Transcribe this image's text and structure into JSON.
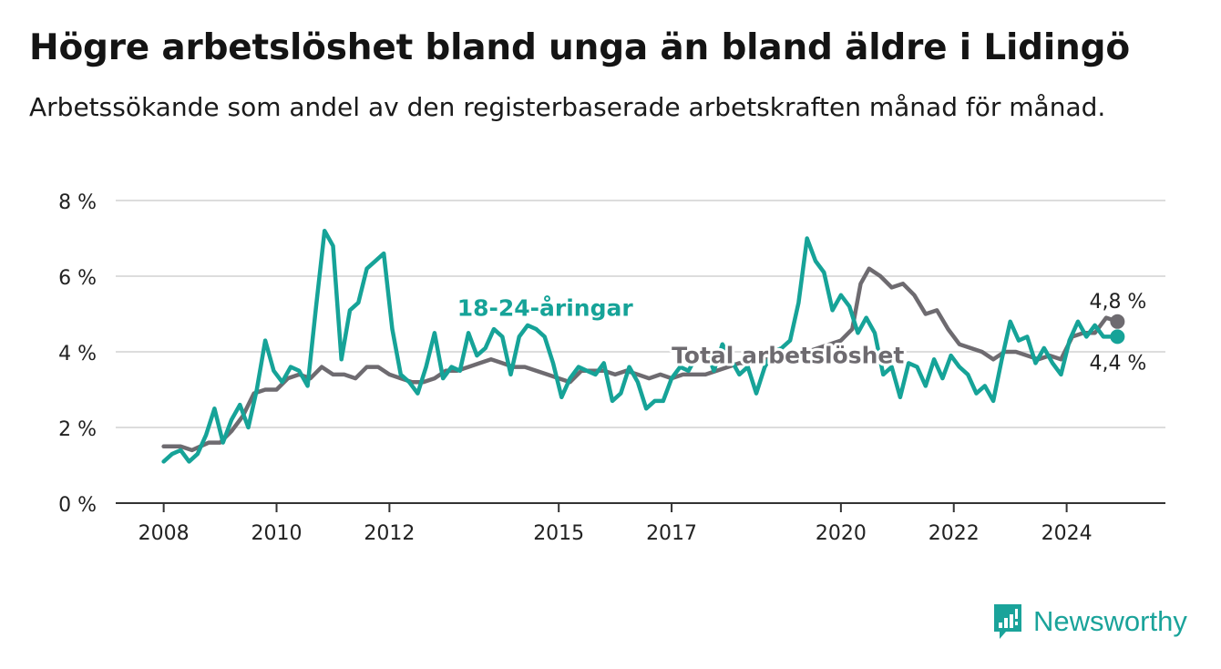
{
  "header": {
    "title": "Högre arbetslöshet bland unga än bland äldre i Lidingö",
    "subtitle": "Arbetssökande som andel av den registerbaserade arbetskraften månad för månad."
  },
  "brand": {
    "label": "Newsworthy",
    "icon": "newsworthy-logo-icon",
    "color": "#1aa39a"
  },
  "chart_data": {
    "type": "line",
    "title": "Högre arbetslöshet bland unga än bland äldre i Lidingö",
    "subtitle": "Arbetssökande som andel av den registerbaserade arbetskraften månad för månad.",
    "xlabel": "",
    "ylabel": "",
    "ylim": [
      0,
      8
    ],
    "xlim": [
      2007.15,
      2025.75
    ],
    "y_ticks": [
      0,
      2,
      4,
      6,
      8
    ],
    "y_tick_labels": [
      "0 %",
      "2 %",
      "4 %",
      "6 %",
      "8 %"
    ],
    "x_ticks": [
      2008,
      2010,
      2012,
      2015,
      2017,
      2020,
      2022,
      2024
    ],
    "x_tick_labels": [
      "2008",
      "2010",
      "2012",
      "2015",
      "2017",
      "2020",
      "2022",
      "2024"
    ],
    "grid": "horizontal",
    "series": [
      {
        "name": "Total arbetslöshet",
        "color": "#6e6b70",
        "end_label": "4,8 %",
        "points": [
          [
            2008.0,
            1.5
          ],
          [
            2008.3,
            1.5
          ],
          [
            2008.5,
            1.4
          ],
          [
            2008.8,
            1.6
          ],
          [
            2009.0,
            1.6
          ],
          [
            2009.2,
            1.9
          ],
          [
            2009.4,
            2.3
          ],
          [
            2009.6,
            2.9
          ],
          [
            2009.8,
            3.0
          ],
          [
            2010.0,
            3.0
          ],
          [
            2010.2,
            3.3
          ],
          [
            2010.4,
            3.4
          ],
          [
            2010.6,
            3.3
          ],
          [
            2010.8,
            3.6
          ],
          [
            2011.0,
            3.4
          ],
          [
            2011.2,
            3.4
          ],
          [
            2011.4,
            3.3
          ],
          [
            2011.6,
            3.6
          ],
          [
            2011.8,
            3.6
          ],
          [
            2012.0,
            3.4
          ],
          [
            2012.2,
            3.3
          ],
          [
            2012.4,
            3.2
          ],
          [
            2012.6,
            3.2
          ],
          [
            2012.8,
            3.3
          ],
          [
            2013.0,
            3.5
          ],
          [
            2013.2,
            3.5
          ],
          [
            2013.4,
            3.6
          ],
          [
            2013.6,
            3.7
          ],
          [
            2013.8,
            3.8
          ],
          [
            2014.0,
            3.7
          ],
          [
            2014.2,
            3.6
          ],
          [
            2014.4,
            3.6
          ],
          [
            2014.6,
            3.5
          ],
          [
            2014.8,
            3.4
          ],
          [
            2015.0,
            3.3
          ],
          [
            2015.2,
            3.2
          ],
          [
            2015.4,
            3.5
          ],
          [
            2015.6,
            3.5
          ],
          [
            2015.8,
            3.5
          ],
          [
            2016.0,
            3.4
          ],
          [
            2016.2,
            3.5
          ],
          [
            2016.4,
            3.4
          ],
          [
            2016.6,
            3.3
          ],
          [
            2016.8,
            3.4
          ],
          [
            2017.0,
            3.3
          ],
          [
            2017.2,
            3.4
          ],
          [
            2017.4,
            3.4
          ],
          [
            2017.6,
            3.4
          ],
          [
            2017.8,
            3.5
          ],
          [
            2018.0,
            3.6
          ],
          [
            2018.2,
            3.7
          ],
          [
            2018.4,
            3.7
          ],
          [
            2018.6,
            3.8
          ],
          [
            2018.8,
            3.8
          ],
          [
            2019.0,
            3.9
          ],
          [
            2019.2,
            4.0
          ],
          [
            2019.4,
            4.0
          ],
          [
            2019.6,
            4.1
          ],
          [
            2019.8,
            4.2
          ],
          [
            2020.0,
            4.3
          ],
          [
            2020.2,
            4.6
          ],
          [
            2020.35,
            5.8
          ],
          [
            2020.5,
            6.2
          ],
          [
            2020.7,
            6.0
          ],
          [
            2020.9,
            5.7
          ],
          [
            2021.1,
            5.8
          ],
          [
            2021.3,
            5.5
          ],
          [
            2021.5,
            5.0
          ],
          [
            2021.7,
            5.1
          ],
          [
            2021.9,
            4.6
          ],
          [
            2022.1,
            4.2
          ],
          [
            2022.3,
            4.1
          ],
          [
            2022.5,
            4.0
          ],
          [
            2022.7,
            3.8
          ],
          [
            2022.9,
            4.0
          ],
          [
            2023.1,
            4.0
          ],
          [
            2023.3,
            3.9
          ],
          [
            2023.5,
            3.8
          ],
          [
            2023.7,
            3.9
          ],
          [
            2023.9,
            3.8
          ],
          [
            2024.1,
            4.4
          ],
          [
            2024.3,
            4.5
          ],
          [
            2024.5,
            4.5
          ],
          [
            2024.7,
            4.9
          ],
          [
            2024.9,
            4.8
          ]
        ]
      },
      {
        "name": "18-24-åringar",
        "color": "#16a398",
        "end_label": "4,4 %",
        "points": [
          [
            2008.0,
            1.1
          ],
          [
            2008.15,
            1.3
          ],
          [
            2008.3,
            1.4
          ],
          [
            2008.45,
            1.1
          ],
          [
            2008.6,
            1.3
          ],
          [
            2008.75,
            1.8
          ],
          [
            2008.9,
            2.5
          ],
          [
            2009.05,
            1.6
          ],
          [
            2009.2,
            2.2
          ],
          [
            2009.35,
            2.6
          ],
          [
            2009.5,
            2.0
          ],
          [
            2009.65,
            3.0
          ],
          [
            2009.8,
            4.3
          ],
          [
            2009.95,
            3.5
          ],
          [
            2010.1,
            3.2
          ],
          [
            2010.25,
            3.6
          ],
          [
            2010.4,
            3.5
          ],
          [
            2010.55,
            3.1
          ],
          [
            2010.7,
            5.2
          ],
          [
            2010.85,
            7.2
          ],
          [
            2011.0,
            6.8
          ],
          [
            2011.15,
            3.8
          ],
          [
            2011.3,
            5.1
          ],
          [
            2011.45,
            5.3
          ],
          [
            2011.6,
            6.2
          ],
          [
            2011.75,
            6.4
          ],
          [
            2011.9,
            6.6
          ],
          [
            2012.05,
            4.6
          ],
          [
            2012.2,
            3.4
          ],
          [
            2012.35,
            3.2
          ],
          [
            2012.5,
            2.9
          ],
          [
            2012.65,
            3.6
          ],
          [
            2012.8,
            4.5
          ],
          [
            2012.95,
            3.3
          ],
          [
            2013.1,
            3.6
          ],
          [
            2013.25,
            3.5
          ],
          [
            2013.4,
            4.5
          ],
          [
            2013.55,
            3.9
          ],
          [
            2013.7,
            4.1
          ],
          [
            2013.85,
            4.6
          ],
          [
            2014.0,
            4.4
          ],
          [
            2014.15,
            3.4
          ],
          [
            2014.3,
            4.4
          ],
          [
            2014.45,
            4.7
          ],
          [
            2014.6,
            4.6
          ],
          [
            2014.75,
            4.4
          ],
          [
            2014.9,
            3.7
          ],
          [
            2015.05,
            2.8
          ],
          [
            2015.2,
            3.3
          ],
          [
            2015.35,
            3.6
          ],
          [
            2015.5,
            3.5
          ],
          [
            2015.65,
            3.4
          ],
          [
            2015.8,
            3.7
          ],
          [
            2015.95,
            2.7
          ],
          [
            2016.1,
            2.9
          ],
          [
            2016.25,
            3.6
          ],
          [
            2016.4,
            3.2
          ],
          [
            2016.55,
            2.5
          ],
          [
            2016.7,
            2.7
          ],
          [
            2016.85,
            2.7
          ],
          [
            2017.0,
            3.3
          ],
          [
            2017.15,
            3.6
          ],
          [
            2017.3,
            3.5
          ],
          [
            2017.45,
            3.9
          ],
          [
            2017.6,
            4.1
          ],
          [
            2017.75,
            3.5
          ],
          [
            2017.9,
            4.2
          ],
          [
            2018.05,
            3.8
          ],
          [
            2018.2,
            3.4
          ],
          [
            2018.35,
            3.6
          ],
          [
            2018.5,
            2.9
          ],
          [
            2018.65,
            3.6
          ],
          [
            2018.8,
            4.0
          ],
          [
            2018.95,
            4.1
          ],
          [
            2019.1,
            4.3
          ],
          [
            2019.25,
            5.3
          ],
          [
            2019.4,
            7.0
          ],
          [
            2019.55,
            6.4
          ],
          [
            2019.7,
            6.1
          ],
          [
            2019.85,
            5.1
          ],
          [
            2020.0,
            5.5
          ],
          [
            2020.15,
            5.2
          ],
          [
            2020.3,
            4.5
          ],
          [
            2020.45,
            4.9
          ],
          [
            2020.6,
            4.5
          ],
          [
            2020.75,
            3.4
          ],
          [
            2020.9,
            3.6
          ],
          [
            2021.05,
            2.8
          ],
          [
            2021.2,
            3.7
          ],
          [
            2021.35,
            3.6
          ],
          [
            2021.5,
            3.1
          ],
          [
            2021.65,
            3.8
          ],
          [
            2021.8,
            3.3
          ],
          [
            2021.95,
            3.9
          ],
          [
            2022.1,
            3.6
          ],
          [
            2022.25,
            3.4
          ],
          [
            2022.4,
            2.9
          ],
          [
            2022.55,
            3.1
          ],
          [
            2022.7,
            2.7
          ],
          [
            2022.85,
            3.8
          ],
          [
            2023.0,
            4.8
          ],
          [
            2023.15,
            4.3
          ],
          [
            2023.3,
            4.4
          ],
          [
            2023.45,
            3.7
          ],
          [
            2023.6,
            4.1
          ],
          [
            2023.75,
            3.7
          ],
          [
            2023.9,
            3.4
          ],
          [
            2024.05,
            4.3
          ],
          [
            2024.2,
            4.8
          ],
          [
            2024.35,
            4.4
          ],
          [
            2024.5,
            4.7
          ],
          [
            2024.65,
            4.4
          ],
          [
            2024.9,
            4.4
          ]
        ]
      }
    ],
    "annotations": [
      {
        "text": "18-24-åringar",
        "series": "18-24-åringar",
        "x": 2013.2,
        "y": 4.95
      },
      {
        "text": "Total arbetslöshet",
        "series": "Total arbetslöshet",
        "x": 2017.0,
        "y": 3.7
      }
    ]
  }
}
